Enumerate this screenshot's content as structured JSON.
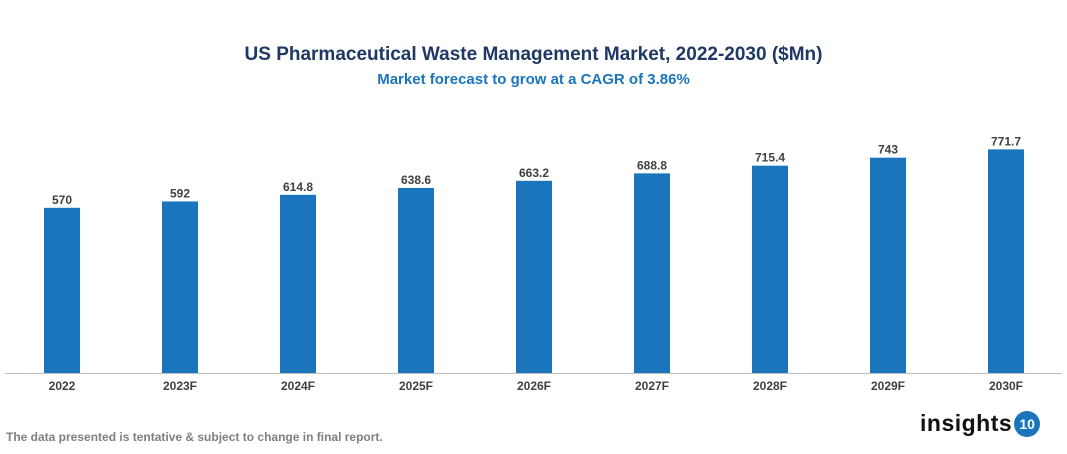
{
  "chart_data": {
    "type": "bar",
    "title": "US Pharmaceutical Waste Management Market, 2022-2030 ($Mn)",
    "subtitle": "Market forecast to grow at a CAGR of 3.86%",
    "categories": [
      "2022",
      "2023F",
      "2024F",
      "2025F",
      "2026F",
      "2027F",
      "2028F",
      "2029F",
      "2030F"
    ],
    "values": [
      570,
      592,
      614.8,
      638.6,
      663.2,
      688.8,
      715.4,
      743,
      771.7
    ],
    "data_labels": [
      "570",
      "592",
      "614.8",
      "638.6",
      "663.2",
      "688.8",
      "715.4",
      "743",
      "771.7"
    ],
    "xlabel": "",
    "ylabel": "",
    "ylim": [
      0,
      800
    ],
    "grid": false,
    "legend": "none",
    "bar_color": "#1a75bc"
  },
  "footnote": "The data presented is tentative & subject to change in final report.",
  "logo": {
    "text": "insights",
    "badge": "10"
  }
}
